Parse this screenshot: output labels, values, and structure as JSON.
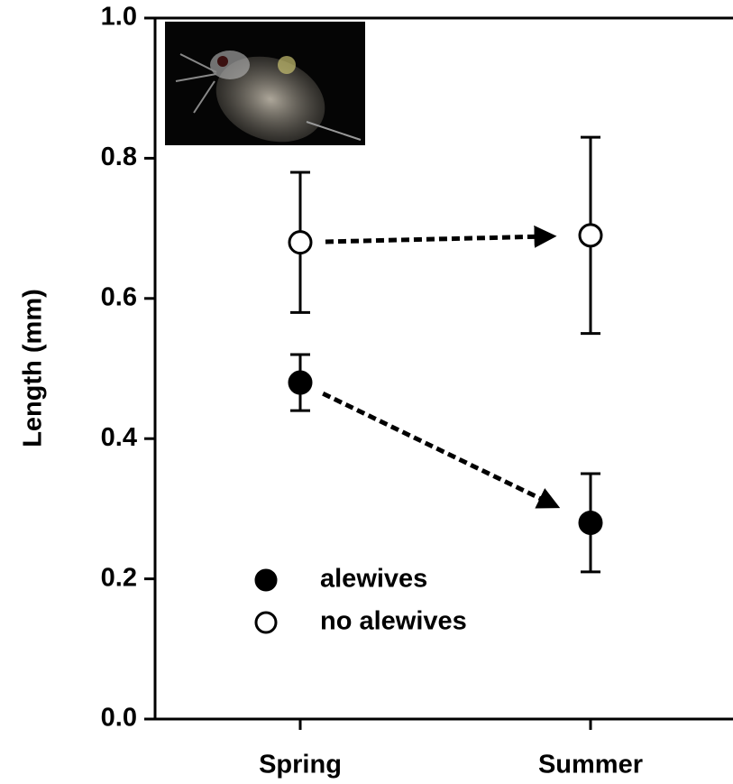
{
  "chart_data": {
    "type": "errorbar",
    "ylabel": "Length (mm)",
    "categories": [
      "Spring",
      "Summer"
    ],
    "series": [
      {
        "name": "alewives",
        "color": "#000000",
        "filled": true,
        "values": [
          0.48,
          0.28
        ],
        "errors": [
          0.04,
          0.07
        ]
      },
      {
        "name": "no alewives",
        "color": "#000000",
        "filled": false,
        "values": [
          0.68,
          0.69
        ],
        "errors": [
          0.1,
          0.14
        ]
      }
    ],
    "ylim": [
      0,
      1
    ],
    "yticks": [
      {
        "value": 0,
        "label": "0.0"
      },
      0.2,
      0.4,
      0.6,
      0.8,
      {
        "value": 1,
        "label": "1.0"
      }
    ],
    "legend": "lower-left"
  }
}
